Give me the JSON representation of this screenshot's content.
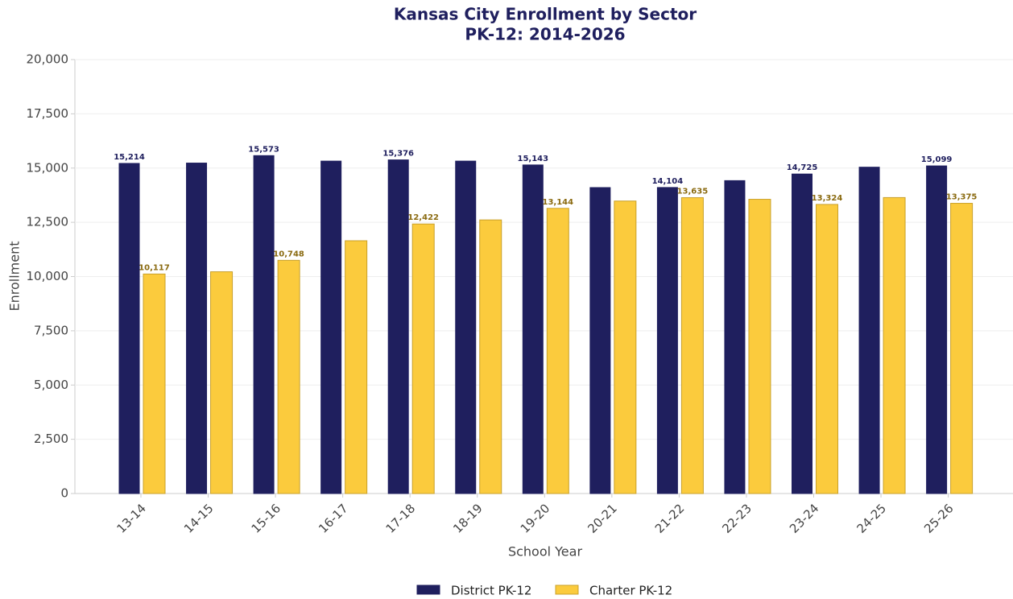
{
  "chart_data": {
    "type": "bar",
    "title": "Kansas City Enrollment by Sector",
    "subtitle": "PK-12: 2014-2026",
    "x_label": "School Year",
    "y_label": "Enrollment",
    "categories": [
      "13-14",
      "14-15",
      "15-16",
      "16-17",
      "17-18",
      "18-19",
      "19-20",
      "20-21",
      "21-22",
      "22-23",
      "23-24",
      "24-25",
      "25-26"
    ],
    "series": [
      {
        "name": "District PK-12",
        "color": "#1f1f5e",
        "values": [
          15214,
          15230,
          15573,
          15320,
          15376,
          15320,
          15143,
          14100,
          14104,
          14420,
          14725,
          15040,
          15099
        ],
        "value_labels": [
          "15,214",
          null,
          "15,573",
          null,
          "15,376",
          null,
          "15,143",
          null,
          "14,104",
          null,
          "14,725",
          null,
          "15,099"
        ]
      },
      {
        "name": "Charter PK-12",
        "color": "#fbcb3d",
        "values": [
          10117,
          10220,
          10748,
          11650,
          12422,
          12610,
          13144,
          13480,
          13635,
          13560,
          13324,
          13640,
          13375
        ],
        "value_labels": [
          "10,117",
          null,
          "10,748",
          null,
          "12,422",
          null,
          "13,144",
          null,
          "13,635",
          null,
          "13,324",
          null,
          "13,375"
        ]
      }
    ],
    "ylim": [
      0,
      20000
    ],
    "yticks": [
      0,
      {
        "value": 2500,
        "label": "2,500"
      },
      {
        "value": 5000,
        "label": "5,000"
      },
      {
        "value": 7500,
        "label": "7,500"
      },
      {
        "value": 10000,
        "label": "10,000"
      },
      {
        "value": 12500,
        "label": "12,500"
      },
      {
        "value": 15000,
        "label": "15,000"
      },
      {
        "value": 17500,
        "label": "17,500"
      },
      {
        "value": 20000,
        "label": "20,000"
      }
    ],
    "grid": true,
    "legend": "bottom"
  }
}
